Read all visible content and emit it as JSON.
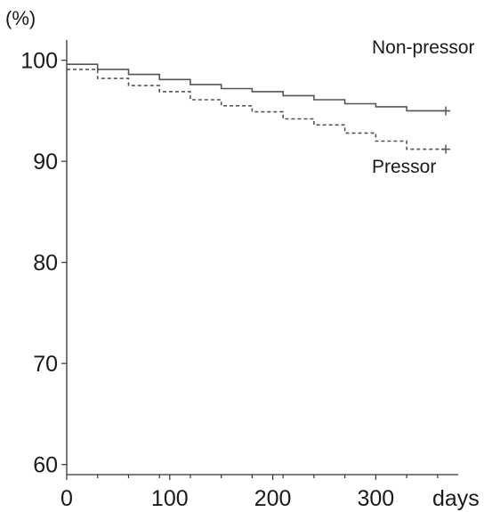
{
  "chart_data": {
    "type": "line",
    "title": "",
    "ylabel": "(%)",
    "xlabel": "days",
    "xlim": [
      0,
      380
    ],
    "ylim": [
      59,
      102
    ],
    "x_ticks": [
      0,
      100,
      200,
      300
    ],
    "y_ticks": [
      60,
      70,
      80,
      90,
      100
    ],
    "grid": false,
    "series": [
      {
        "name": "Non-pressor",
        "style": "solid",
        "color": "#555555",
        "censor_marker": "+",
        "x": [
          0,
          30,
          60,
          90,
          120,
          150,
          180,
          210,
          240,
          270,
          300,
          330,
          360
        ],
        "y": [
          99.6,
          99.1,
          98.6,
          98.1,
          97.6,
          97.2,
          96.9,
          96.5,
          96.1,
          95.7,
          95.4,
          95.0,
          95.0
        ]
      },
      {
        "name": "Pressor",
        "style": "dashed",
        "color": "#555555",
        "censor_marker": "+",
        "x": [
          0,
          30,
          60,
          90,
          120,
          150,
          180,
          210,
          240,
          270,
          300,
          330,
          360
        ],
        "y": [
          99.1,
          98.2,
          97.5,
          96.9,
          96.1,
          95.5,
          94.9,
          94.2,
          93.6,
          92.8,
          92.0,
          91.2,
          91.2
        ]
      }
    ]
  }
}
